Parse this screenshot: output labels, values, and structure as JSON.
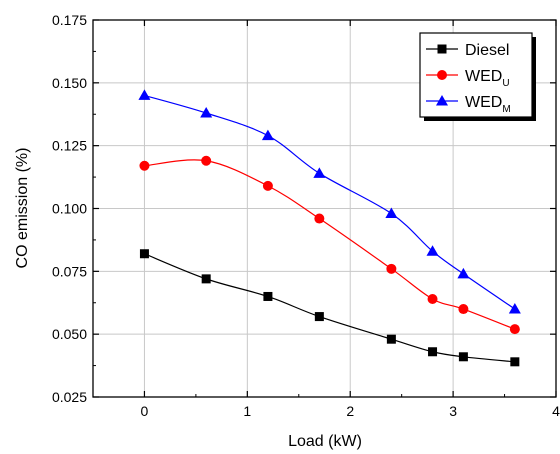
{
  "chart_data": {
    "type": "line",
    "title": "",
    "xlabel": "Load (kW)",
    "ylabel": "CO emission (%)",
    "xlim": [
      -0.5,
      4
    ],
    "ylim": [
      0.025,
      0.175
    ],
    "x_ticks": [
      0,
      1,
      2,
      3,
      4
    ],
    "x_tick_labels": [
      "0",
      "1",
      "2",
      "3",
      "4"
    ],
    "y_ticks": [
      0.025,
      0.05,
      0.075,
      0.1,
      0.125,
      0.15,
      0.175
    ],
    "y_tick_labels": [
      "0.025",
      "0.050",
      "0.075",
      "0.100",
      "0.125",
      "0.150",
      "0.175"
    ],
    "grid": true,
    "legend_position": "top-right",
    "series": [
      {
        "name": "Diesel",
        "legend_main": "Diesel",
        "legend_sub": "",
        "color": "#000000",
        "marker": "square",
        "x": [
          0,
          0.6,
          1.2,
          1.7,
          2.4,
          2.8,
          3.1,
          3.6
        ],
        "y": [
          0.082,
          0.072,
          0.065,
          0.057,
          0.048,
          0.043,
          0.041,
          0.039
        ]
      },
      {
        "name": "WEDU",
        "legend_main": "WED",
        "legend_sub": "U",
        "color": "#ff0000",
        "marker": "circle",
        "x": [
          0,
          0.6,
          1.2,
          1.7,
          2.4,
          2.8,
          3.1,
          3.6
        ],
        "y": [
          0.117,
          0.119,
          0.109,
          0.096,
          0.076,
          0.064,
          0.06,
          0.052
        ]
      },
      {
        "name": "WEDM",
        "legend_main": "WED",
        "legend_sub": "M",
        "color": "#0000ff",
        "marker": "triangle",
        "x": [
          0,
          0.6,
          1.2,
          1.7,
          2.4,
          2.8,
          3.1,
          3.6
        ],
        "y": [
          0.145,
          0.138,
          0.129,
          0.114,
          0.098,
          0.083,
          0.074,
          0.06
        ]
      }
    ]
  }
}
